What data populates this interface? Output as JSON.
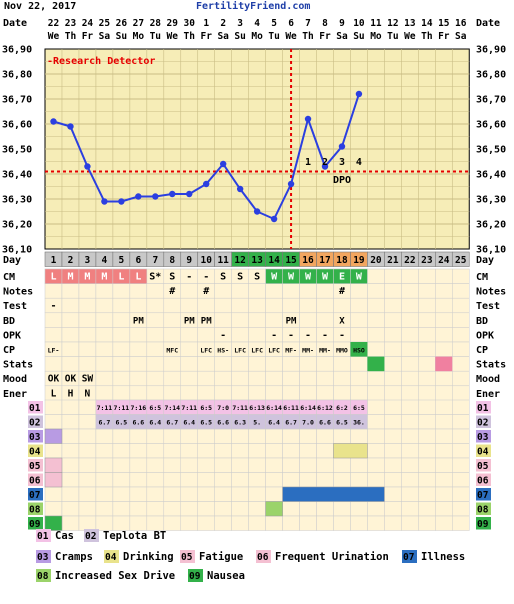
{
  "header": {
    "date": "Nov 22, 2017",
    "site": "FertilityFriend.com"
  },
  "colors": {
    "temp_bg": "#f6edb7",
    "grid": "#c9bd85",
    "line": "#2b3fe0",
    "coverline": "#e60000",
    "day_cell": "#c8c8c8",
    "row_bg": "#fff4d6",
    "cm_pink": "#f08080",
    "cm_green": "#33b14a",
    "day_green": "#33b14a",
    "day_orange": "#f2a660",
    "stats_green": "#33b14a",
    "stats_pink": "#f080a0"
  },
  "chart_data": {
    "type": "line",
    "title": "",
    "dates": [
      "22",
      "23",
      "24",
      "25",
      "26",
      "27",
      "28",
      "29",
      "30",
      "1",
      "2",
      "3",
      "4",
      "5",
      "6",
      "7",
      "8",
      "9",
      "10",
      "11",
      "12",
      "13",
      "14",
      "15",
      "16"
    ],
    "weekdays": [
      "We",
      "Th",
      "Fr",
      "Sa",
      "Su",
      "Mo",
      "Tu",
      "We",
      "Th",
      "Fr",
      "Sa",
      "Su",
      "Mo",
      "Tu",
      "We",
      "Th",
      "Fr",
      "Sa",
      "Su",
      "Mo",
      "Tu",
      "We",
      "Th",
      "Fr",
      "Sa"
    ],
    "days": [
      "1",
      "2",
      "3",
      "4",
      "5",
      "6",
      "7",
      "8",
      "9",
      "10",
      "11",
      "12",
      "13",
      "14",
      "15",
      "16",
      "17",
      "18",
      "19",
      "20",
      "21",
      "22",
      "23",
      "24",
      "25"
    ],
    "ylim": [
      36.1,
      36.9
    ],
    "y_ticks": [
      "36,90",
      "36,80",
      "36,70",
      "36,60",
      "36,50",
      "36,40",
      "36,30",
      "36,20",
      "36,10"
    ],
    "temps": [
      36.61,
      36.59,
      36.43,
      36.29,
      36.29,
      36.31,
      36.31,
      36.32,
      36.32,
      36.36,
      36.44,
      36.34,
      36.25,
      36.22,
      36.36,
      36.62,
      36.43,
      36.51,
      36.72
    ],
    "coverline": 36.41,
    "ovulation_day": 15,
    "detector_label": "-Research Detector",
    "dpo_numbers": [
      "1",
      "2",
      "3",
      "4"
    ],
    "dpo_label": "DPO",
    "x_label": "Day"
  },
  "rows": {
    "labels": [
      "CM",
      "Notes",
      "Test",
      "BD",
      "OPK",
      "CP",
      "Stats",
      "Mood",
      "Ener"
    ],
    "cm": [
      "L",
      "M",
      "M",
      "M",
      "L",
      "L",
      "S*",
      "S",
      "-",
      "-",
      "S",
      "S",
      "S",
      "W",
      "W",
      "W",
      "W",
      "E",
      "W"
    ],
    "notes": {
      "8": "#",
      "10": "#",
      "18": "#"
    },
    "test": {
      "1": "-"
    },
    "bd": {
      "6": "PM",
      "9": "PM",
      "10": "PM",
      "15": "PM",
      "18": "X"
    },
    "opk": {
      "11": "-",
      "14": "-",
      "15": "-",
      "16": "-",
      "17": "-",
      "18": "-"
    },
    "cp": {
      "1": "LF-",
      "8": "MFC",
      "10": "LFC",
      "11": "HS-",
      "12": "LFC",
      "13": "LFC",
      "14": "LFC",
      "15": "MF-",
      "16": "MM-",
      "17": "MM-",
      "18": "MMO",
      "19": "HSO"
    },
    "mood": [
      "OK",
      "OK",
      "SW"
    ],
    "ener": [
      "L",
      "H",
      "N"
    ]
  },
  "symptom_rows": {
    "codes": [
      "01",
      "02",
      "03",
      "04",
      "05",
      "06",
      "07",
      "08",
      "09"
    ],
    "row01": [
      "7:11",
      "7:11",
      "7:16",
      "6:5",
      "7:14",
      "7:11",
      "6:5",
      "7:0",
      "7:11",
      "6:13",
      "6:14",
      "6:11",
      "6:14",
      "6:12",
      "6:2",
      "6:5"
    ],
    "row02": [
      "6.7",
      "6.5",
      "6.6",
      "6.4",
      "6.7",
      "6.4",
      "6.5",
      "6.6",
      "6.3",
      "5.",
      "6.4",
      "6.7",
      "7.0",
      "6.6",
      "6.5",
      "36."
    ]
  },
  "legend": [
    {
      "code": "01",
      "label": "Cas"
    },
    {
      "code": "02",
      "label": "Teplota BT"
    },
    {
      "code": "03",
      "label": "Cramps"
    },
    {
      "code": "04",
      "label": "Drinking"
    },
    {
      "code": "05",
      "label": "Fatigue"
    },
    {
      "code": "06",
      "label": "Frequent Urination"
    },
    {
      "code": "07",
      "label": "Illness"
    },
    {
      "code": "08",
      "label": "Increased Sex Drive"
    },
    {
      "code": "09",
      "label": "Nausea"
    }
  ]
}
